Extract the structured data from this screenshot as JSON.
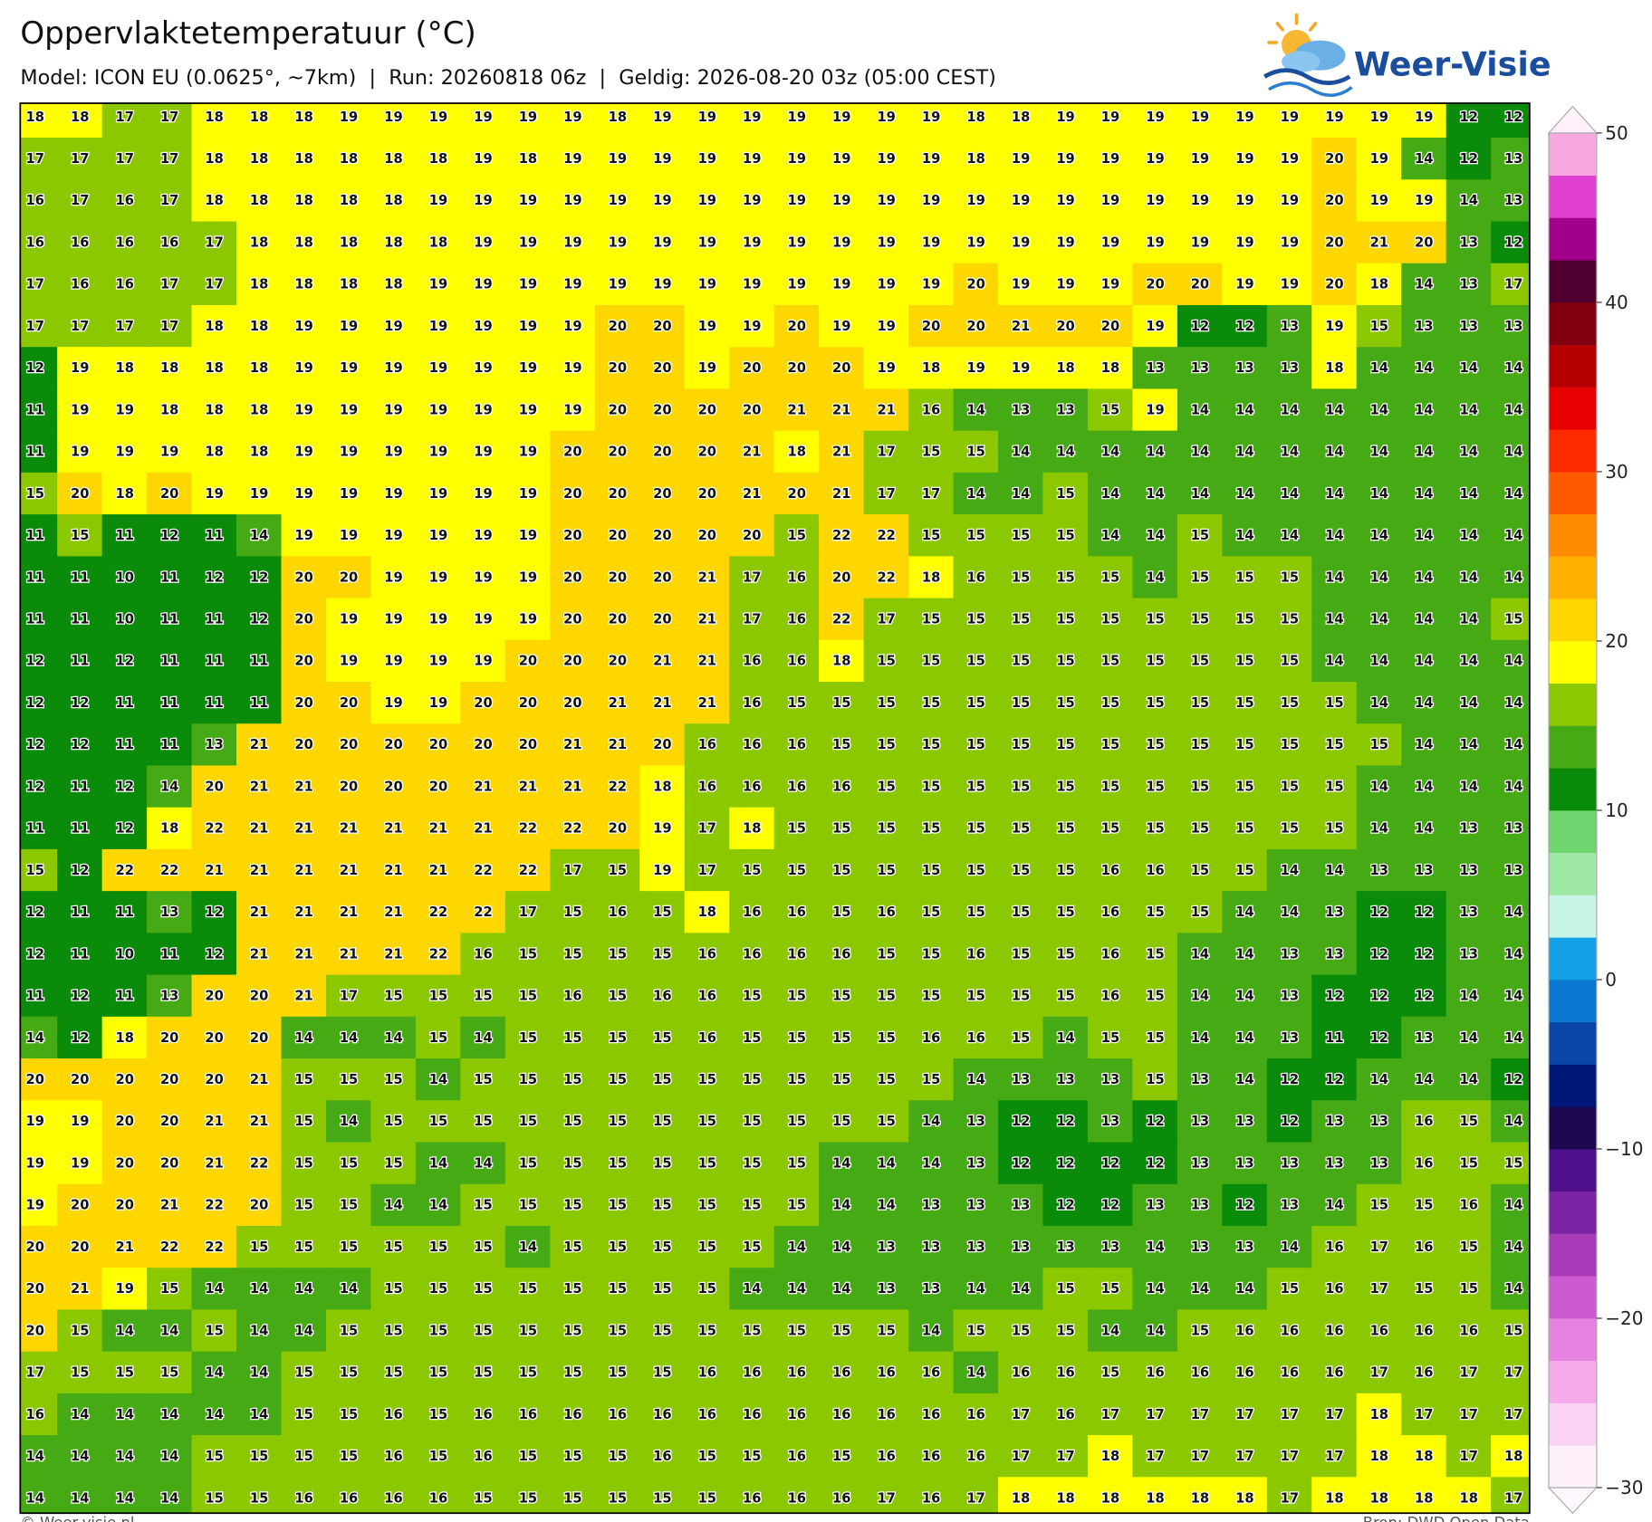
{
  "header": {
    "title": "Oppervlaktetemperatuur (°C)",
    "subtitle": "Model: ICON EU (0.0625°, ~7km)  |  Run: 20260818 06z  |  Geldig: 2026-08-20 03z (05:00 CEST)",
    "logo": "Weer-Visie"
  },
  "map": {
    "grid": [
      [
        18,
        18,
        17,
        17,
        18,
        18,
        18,
        19,
        19,
        19,
        19,
        19,
        19,
        18,
        19,
        19,
        19,
        19,
        19,
        19,
        19,
        18,
        18,
        19,
        19,
        19,
        19,
        19,
        19,
        19,
        19,
        19,
        12,
        12
      ],
      [
        17,
        17,
        17,
        17,
        18,
        18,
        18,
        18,
        18,
        18,
        19,
        18,
        19,
        19,
        19,
        19,
        19,
        19,
        19,
        19,
        19,
        18,
        19,
        19,
        19,
        19,
        19,
        19,
        19,
        20,
        19,
        14,
        12,
        13
      ],
      [
        16,
        17,
        16,
        17,
        18,
        18,
        18,
        18,
        18,
        19,
        19,
        19,
        19,
        19,
        19,
        19,
        19,
        19,
        19,
        19,
        19,
        19,
        19,
        19,
        19,
        19,
        19,
        19,
        19,
        20,
        19,
        19,
        14,
        13
      ],
      [
        16,
        16,
        16,
        16,
        17,
        18,
        18,
        18,
        18,
        18,
        19,
        19,
        19,
        19,
        19,
        19,
        19,
        19,
        19,
        19,
        19,
        19,
        19,
        19,
        19,
        19,
        19,
        19,
        19,
        20,
        21,
        20,
        13,
        12
      ],
      [
        17,
        16,
        16,
        17,
        17,
        18,
        18,
        18,
        18,
        19,
        19,
        19,
        19,
        19,
        19,
        19,
        19,
        19,
        19,
        19,
        19,
        20,
        19,
        19,
        19,
        20,
        20,
        19,
        19,
        20,
        18,
        14,
        13,
        17
      ],
      [
        17,
        17,
        17,
        17,
        18,
        18,
        19,
        19,
        19,
        19,
        19,
        19,
        19,
        20,
        20,
        19,
        19,
        20,
        19,
        19,
        20,
        20,
        21,
        20,
        20,
        19,
        12,
        12,
        13,
        19,
        15,
        13,
        13,
        13
      ],
      [
        12,
        19,
        18,
        18,
        18,
        18,
        19,
        19,
        19,
        19,
        19,
        19,
        19,
        20,
        20,
        19,
        20,
        20,
        20,
        19,
        18,
        19,
        19,
        18,
        18,
        13,
        13,
        13,
        13,
        18,
        14,
        14,
        14,
        14
      ],
      [
        11,
        19,
        19,
        18,
        18,
        18,
        19,
        19,
        19,
        19,
        19,
        19,
        19,
        20,
        20,
        20,
        20,
        21,
        21,
        21,
        16,
        14,
        13,
        13,
        15,
        19,
        14,
        14,
        14,
        14,
        14,
        14,
        14,
        14
      ],
      [
        11,
        19,
        19,
        19,
        18,
        18,
        19,
        19,
        19,
        19,
        19,
        19,
        20,
        20,
        20,
        20,
        21,
        18,
        21,
        17,
        15,
        15,
        14,
        14,
        14,
        14,
        14,
        14,
        14,
        14,
        14,
        14,
        14,
        14
      ],
      [
        15,
        20,
        18,
        20,
        19,
        19,
        19,
        19,
        19,
        19,
        19,
        19,
        20,
        20,
        20,
        20,
        21,
        20,
        21,
        17,
        17,
        14,
        14,
        15,
        14,
        14,
        14,
        14,
        14,
        14,
        14,
        14,
        14,
        14
      ],
      [
        11,
        15,
        11,
        12,
        11,
        14,
        19,
        19,
        19,
        19,
        19,
        19,
        20,
        20,
        20,
        20,
        20,
        15,
        22,
        22,
        15,
        15,
        15,
        15,
        14,
        14,
        15,
        14,
        14,
        14,
        14,
        14,
        14,
        14
      ],
      [
        11,
        11,
        10,
        11,
        12,
        12,
        20,
        20,
        19,
        19,
        19,
        19,
        20,
        20,
        20,
        21,
        17,
        16,
        20,
        22,
        18,
        16,
        15,
        15,
        15,
        14,
        15,
        15,
        15,
        14,
        14,
        14,
        14,
        14
      ],
      [
        11,
        11,
        10,
        11,
        11,
        12,
        20,
        19,
        19,
        19,
        19,
        19,
        20,
        20,
        20,
        21,
        17,
        16,
        22,
        17,
        15,
        15,
        15,
        15,
        15,
        15,
        15,
        15,
        15,
        14,
        14,
        14,
        14,
        15
      ],
      [
        12,
        11,
        12,
        11,
        11,
        11,
        20,
        19,
        19,
        19,
        19,
        20,
        20,
        20,
        21,
        21,
        16,
        16,
        18,
        15,
        15,
        15,
        15,
        15,
        15,
        15,
        15,
        15,
        15,
        14,
        14,
        14,
        14,
        14
      ],
      [
        12,
        12,
        11,
        11,
        11,
        11,
        20,
        20,
        19,
        19,
        20,
        20,
        20,
        21,
        21,
        21,
        16,
        15,
        15,
        15,
        15,
        15,
        15,
        15,
        15,
        15,
        15,
        15,
        15,
        15,
        14,
        14,
        14,
        14
      ],
      [
        12,
        12,
        11,
        11,
        13,
        21,
        20,
        20,
        20,
        20,
        20,
        20,
        21,
        21,
        20,
        16,
        16,
        16,
        15,
        15,
        15,
        15,
        15,
        15,
        15,
        15,
        15,
        15,
        15,
        15,
        15,
        14,
        14,
        14
      ],
      [
        12,
        11,
        12,
        14,
        20,
        21,
        21,
        20,
        20,
        20,
        21,
        21,
        21,
        22,
        18,
        16,
        16,
        16,
        16,
        15,
        15,
        15,
        15,
        15,
        15,
        15,
        15,
        15,
        15,
        15,
        14,
        14,
        14,
        14
      ],
      [
        11,
        11,
        12,
        18,
        22,
        21,
        21,
        21,
        21,
        21,
        21,
        22,
        22,
        20,
        19,
        17,
        18,
        15,
        15,
        15,
        15,
        15,
        15,
        15,
        15,
        15,
        15,
        15,
        15,
        15,
        14,
        14,
        13,
        13
      ],
      [
        15,
        12,
        22,
        22,
        21,
        21,
        21,
        21,
        21,
        21,
        22,
        22,
        17,
        15,
        19,
        17,
        15,
        15,
        15,
        15,
        15,
        15,
        15,
        15,
        16,
        16,
        15,
        15,
        14,
        14,
        13,
        13,
        13,
        13
      ],
      [
        12,
        11,
        11,
        13,
        12,
        21,
        21,
        21,
        21,
        22,
        22,
        17,
        15,
        16,
        15,
        18,
        16,
        16,
        15,
        16,
        15,
        15,
        15,
        15,
        16,
        15,
        15,
        14,
        14,
        13,
        12,
        12,
        13,
        14
      ],
      [
        12,
        11,
        10,
        11,
        12,
        21,
        21,
        21,
        21,
        22,
        16,
        15,
        15,
        15,
        15,
        16,
        16,
        16,
        16,
        15,
        15,
        16,
        15,
        15,
        16,
        15,
        14,
        14,
        13,
        13,
        12,
        12,
        13,
        14
      ],
      [
        11,
        12,
        11,
        13,
        20,
        20,
        21,
        17,
        15,
        15,
        15,
        15,
        16,
        15,
        16,
        16,
        15,
        15,
        15,
        15,
        15,
        15,
        15,
        15,
        16,
        15,
        14,
        14,
        13,
        12,
        12,
        12,
        14,
        14
      ],
      [
        14,
        12,
        18,
        20,
        20,
        20,
        14,
        14,
        14,
        15,
        14,
        15,
        15,
        15,
        15,
        16,
        15,
        15,
        15,
        15,
        16,
        16,
        15,
        14,
        15,
        15,
        14,
        14,
        13,
        11,
        12,
        13,
        14,
        14
      ],
      [
        20,
        20,
        20,
        20,
        20,
        21,
        15,
        15,
        15,
        14,
        15,
        15,
        15,
        15,
        15,
        15,
        15,
        15,
        15,
        15,
        15,
        14,
        13,
        13,
        13,
        15,
        13,
        14,
        12,
        12,
        14,
        14,
        14,
        12
      ],
      [
        19,
        19,
        20,
        20,
        21,
        21,
        15,
        14,
        15,
        15,
        15,
        15,
        15,
        15,
        15,
        15,
        15,
        15,
        15,
        15,
        14,
        13,
        12,
        12,
        13,
        12,
        13,
        13,
        12,
        13,
        13,
        16,
        15,
        14
      ],
      [
        19,
        19,
        20,
        20,
        21,
        22,
        15,
        15,
        15,
        14,
        14,
        15,
        15,
        15,
        15,
        15,
        15,
        15,
        14,
        14,
        14,
        13,
        12,
        12,
        12,
        12,
        13,
        13,
        13,
        13,
        13,
        16,
        15,
        15
      ],
      [
        19,
        20,
        20,
        21,
        22,
        20,
        15,
        15,
        14,
        14,
        15,
        15,
        15,
        15,
        15,
        15,
        15,
        15,
        14,
        14,
        13,
        13,
        13,
        12,
        12,
        13,
        13,
        12,
        13,
        14,
        15,
        15,
        16,
        14
      ],
      [
        20,
        20,
        21,
        22,
        22,
        15,
        15,
        15,
        15,
        15,
        15,
        14,
        15,
        15,
        15,
        15,
        15,
        14,
        14,
        13,
        13,
        13,
        13,
        13,
        13,
        14,
        13,
        13,
        14,
        16,
        17,
        16,
        15,
        14
      ],
      [
        20,
        21,
        19,
        15,
        14,
        14,
        14,
        14,
        15,
        15,
        15,
        15,
        15,
        15,
        15,
        15,
        14,
        14,
        14,
        13,
        13,
        14,
        14,
        15,
        15,
        14,
        14,
        14,
        15,
        16,
        17,
        15,
        15,
        14
      ],
      [
        20,
        15,
        14,
        14,
        15,
        14,
        14,
        15,
        15,
        15,
        15,
        15,
        15,
        15,
        15,
        15,
        15,
        15,
        15,
        15,
        14,
        15,
        15,
        15,
        14,
        14,
        15,
        16,
        16,
        16,
        16,
        16,
        16,
        15
      ],
      [
        17,
        15,
        15,
        15,
        14,
        14,
        15,
        15,
        15,
        15,
        15,
        15,
        15,
        15,
        15,
        16,
        16,
        16,
        16,
        16,
        16,
        14,
        16,
        16,
        15,
        16,
        16,
        16,
        16,
        16,
        17,
        16,
        17,
        17
      ],
      [
        16,
        14,
        14,
        14,
        14,
        14,
        15,
        15,
        16,
        15,
        16,
        16,
        16,
        16,
        16,
        16,
        16,
        16,
        16,
        16,
        16,
        16,
        17,
        16,
        17,
        17,
        17,
        17,
        17,
        17,
        18,
        17,
        17,
        17
      ],
      [
        14,
        14,
        14,
        14,
        15,
        15,
        15,
        15,
        16,
        15,
        16,
        15,
        15,
        15,
        16,
        15,
        15,
        16,
        15,
        16,
        16,
        16,
        17,
        17,
        18,
        17,
        17,
        17,
        17,
        17,
        18,
        18,
        17,
        18
      ],
      [
        14,
        14,
        14,
        14,
        15,
        15,
        16,
        16,
        16,
        16,
        15,
        15,
        15,
        15,
        15,
        15,
        16,
        16,
        16,
        17,
        16,
        17,
        18,
        18,
        18,
        18,
        18,
        18,
        17,
        18,
        18,
        18,
        18,
        17
      ]
    ]
  },
  "colorbar": {
    "ticks": [
      50,
      40,
      30,
      20,
      10,
      0,
      {
        "value": -10,
        "label": "−10"
      },
      {
        "value": -20,
        "label": "−20"
      },
      {
        "value": -30,
        "label": "−30"
      }
    ],
    "colors": [
      "#fdf0fa",
      "#fbd4f3",
      "#f5aaea",
      "#e682e0",
      "#cc5ad0",
      "#a83cb8",
      "#7c24a4",
      "#50108c",
      "#1e0850",
      "#00187a",
      "#0a46a8",
      "#0a78d2",
      "#14a0e6",
      "#c8f5e6",
      "#a0e8a6",
      "#6ed46e",
      "#0a8c0a",
      "#46aa14",
      "#8cc800",
      "#ffff00",
      "#ffd700",
      "#ffb000",
      "#ff8c00",
      "#ff5a00",
      "#ff2a00",
      "#e60000",
      "#b40000",
      "#800010",
      "#500030",
      "#a0008a",
      "#e040d0",
      "#f8a8e0"
    ]
  },
  "footer": {
    "credit": "© Weer-visie.nl",
    "source": "Bron: DWD Open Data"
  }
}
